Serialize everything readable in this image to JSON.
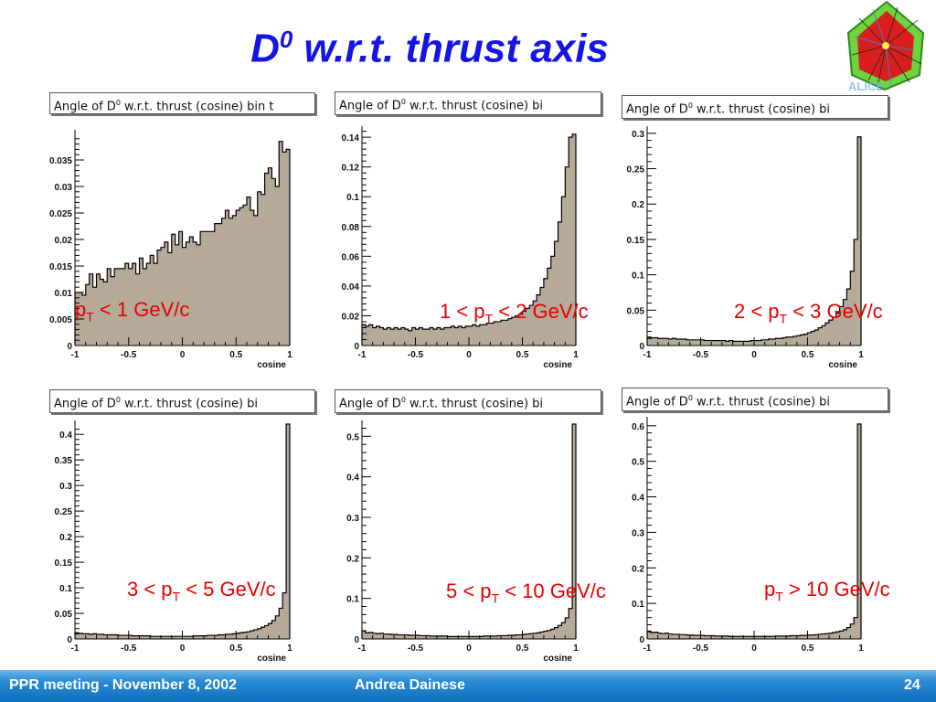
{
  "slide": {
    "title_main": "D",
    "title_sup": "0",
    "title_rest": " w.r.t. thrust axis"
  },
  "footer": {
    "meeting": "PPR meeting - November 8, 2002",
    "author": "Andrea Dainese",
    "page": "24"
  },
  "colors": {
    "title": "#1414e6",
    "annotation": "#e60000",
    "hist_fill": "#b5aa98",
    "hist_line": "#000000",
    "footer": "#1a7ccc"
  },
  "logo": {
    "icon": "alice-event-display-logo-icon"
  },
  "chart_data": [
    {
      "type": "bar",
      "title": "Angle of D0 w.r.t. thrust (cosine)   bin t",
      "title_parts": [
        "Angle of D",
        "0",
        " w.r.t. thrust (cosine)   bin t"
      ],
      "xlabel": "cosine",
      "annotation": {
        "pre": "p",
        "sub": "T",
        "post": " < 1 GeV/c"
      },
      "xlim": [
        -1,
        1
      ],
      "ylim": [
        0,
        0.04
      ],
      "xticks": [
        -1,
        -0.5,
        0,
        0.5,
        1
      ],
      "xtick_labels": [
        "-1",
        "-0.5",
        "0",
        "0.5",
        "1"
      ],
      "yticks": [
        0,
        0.005,
        0.01,
        0.015,
        0.02,
        0.025,
        0.03,
        0.035
      ],
      "ytick_labels": [
        "0",
        "0.005",
        "0.01",
        "0.015",
        "0.02",
        "0.025",
        "0.03",
        "0.035"
      ],
      "values": [
        0.01,
        0.01,
        0.0095,
        0.0115,
        0.0135,
        0.011,
        0.0135,
        0.0125,
        0.012,
        0.0145,
        0.013,
        0.0145,
        0.0145,
        0.0145,
        0.0155,
        0.0145,
        0.0155,
        0.0135,
        0.0165,
        0.0145,
        0.0155,
        0.017,
        0.0155,
        0.018,
        0.0185,
        0.0195,
        0.0175,
        0.021,
        0.019,
        0.0215,
        0.0185,
        0.0195,
        0.0205,
        0.0195,
        0.019,
        0.0215,
        0.0215,
        0.0215,
        0.0215,
        0.023,
        0.023,
        0.024,
        0.0255,
        0.024,
        0.0245,
        0.0255,
        0.026,
        0.0265,
        0.028,
        0.0255,
        0.0245,
        0.029,
        0.0285,
        0.0325,
        0.0335,
        0.0315,
        0.03,
        0.0385,
        0.0365,
        0.037
      ]
    },
    {
      "type": "bar",
      "title": "Angle of D0 w.r.t. thrust (cosine)   bi",
      "title_parts": [
        "Angle of D",
        "0",
        " w.r.t. thrust (cosine)   bi"
      ],
      "xlabel": "cosine",
      "annotation": {
        "pre": "1 < p",
        "sub": "T",
        "post": " < 2 GeV/c"
      },
      "xlim": [
        -1,
        1
      ],
      "ylim": [
        0,
        0.145
      ],
      "xticks": [
        -1,
        -0.5,
        0,
        0.5,
        1
      ],
      "xtick_labels": [
        "-1",
        "-0.5",
        "0",
        "0.5",
        "1"
      ],
      "yticks": [
        0,
        0.02,
        0.04,
        0.06,
        0.08,
        0.1,
        0.12,
        0.14
      ],
      "ytick_labels": [
        "0",
        "0.02",
        "0.04",
        "0.06",
        "0.08",
        "0.1",
        "0.12",
        "0.14"
      ],
      "values": [
        0.014,
        0.013,
        0.014,
        0.012,
        0.013,
        0.012,
        0.011,
        0.012,
        0.011,
        0.012,
        0.011,
        0.012,
        0.011,
        0.01,
        0.012,
        0.011,
        0.012,
        0.011,
        0.011,
        0.012,
        0.011,
        0.012,
        0.011,
        0.012,
        0.012,
        0.013,
        0.012,
        0.013,
        0.012,
        0.013,
        0.013,
        0.014,
        0.013,
        0.014,
        0.014,
        0.015,
        0.015,
        0.016,
        0.016,
        0.017,
        0.017,
        0.018,
        0.019,
        0.02,
        0.021,
        0.023,
        0.025,
        0.027,
        0.03,
        0.034,
        0.039,
        0.045,
        0.052,
        0.06,
        0.07,
        0.083,
        0.1,
        0.12,
        0.14,
        0.142
      ]
    },
    {
      "type": "bar",
      "title": "Angle of D0 w.r.t. thrust (cosine)   bi",
      "title_parts": [
        "Angle of D",
        "0",
        " w.r.t. thrust (cosine)   bi"
      ],
      "xlabel": "cosine",
      "annotation": {
        "pre": "2 < p",
        "sub": "T",
        "post": " < 3 GeV/c"
      },
      "xlim": [
        -1,
        1
      ],
      "ylim": [
        0,
        0.305
      ],
      "xticks": [
        -1,
        -0.5,
        0,
        0.5,
        1
      ],
      "xtick_labels": [
        "-1",
        "-0.5",
        "0",
        "0.5",
        "1"
      ],
      "yticks": [
        0,
        0.05,
        0.1,
        0.15,
        0.2,
        0.25,
        0.3
      ],
      "ytick_labels": [
        "0",
        "0.05",
        "0.1",
        "0.15",
        "0.2",
        "0.25",
        "0.3"
      ],
      "values": [
        0.012,
        0.011,
        0.011,
        0.01,
        0.01,
        0.01,
        0.009,
        0.01,
        0.009,
        0.009,
        0.009,
        0.008,
        0.008,
        0.008,
        0.008,
        0.008,
        0.007,
        0.007,
        0.007,
        0.007,
        0.007,
        0.007,
        0.006,
        0.007,
        0.006,
        0.006,
        0.006,
        0.006,
        0.006,
        0.007,
        0.007,
        0.007,
        0.008,
        0.008,
        0.009,
        0.009,
        0.01,
        0.01,
        0.011,
        0.012,
        0.012,
        0.013,
        0.014,
        0.015,
        0.016,
        0.018,
        0.02,
        0.022,
        0.025,
        0.028,
        0.032,
        0.036,
        0.04,
        0.046,
        0.055,
        0.065,
        0.08,
        0.105,
        0.15,
        0.295
      ]
    },
    {
      "type": "bar",
      "title": "Angle of D0 w.r.t. thrust (cosine)   bi",
      "title_parts": [
        "Angle of D",
        "0",
        " w.r.t. thrust (cosine)   bi"
      ],
      "xlabel": "cosine",
      "annotation": {
        "pre": "3 < p",
        "sub": "T",
        "post": " < 5 GeV/c"
      },
      "xlim": [
        -1,
        1
      ],
      "ylim": [
        0,
        0.42
      ],
      "xticks": [
        -1,
        -0.5,
        0,
        0.5,
        1
      ],
      "xtick_labels": [
        "-1",
        "-0.5",
        "0",
        "0.5",
        "1"
      ],
      "yticks": [
        0,
        0.05,
        0.1,
        0.15,
        0.2,
        0.25,
        0.3,
        0.35,
        0.4
      ],
      "ytick_labels": [
        "0",
        "0.05",
        "0.1",
        "0.15",
        "0.2",
        "0.25",
        "0.3",
        "0.35",
        "0.4"
      ],
      "values": [
        0.012,
        0.011,
        0.01,
        0.01,
        0.009,
        0.01,
        0.009,
        0.009,
        0.008,
        0.008,
        0.008,
        0.008,
        0.007,
        0.007,
        0.007,
        0.007,
        0.006,
        0.006,
        0.006,
        0.006,
        0.006,
        0.005,
        0.005,
        0.005,
        0.005,
        0.005,
        0.005,
        0.005,
        0.005,
        0.005,
        0.005,
        0.005,
        0.005,
        0.006,
        0.006,
        0.006,
        0.006,
        0.007,
        0.007,
        0.007,
        0.008,
        0.008,
        0.009,
        0.009,
        0.01,
        0.011,
        0.012,
        0.013,
        0.014,
        0.016,
        0.018,
        0.02,
        0.023,
        0.026,
        0.03,
        0.036,
        0.045,
        0.06,
        0.09,
        0.42
      ]
    },
    {
      "type": "bar",
      "title": "Angle of D0 w.r.t. thrust (cosine)   bi",
      "title_parts": [
        "Angle of D",
        "0",
        " w.r.t. thrust (cosine)   bi"
      ],
      "xlabel": "cosine",
      "annotation": {
        "pre": "5 < p",
        "sub": "T",
        "post": " < 10 GeV/c"
      },
      "xlim": [
        -1,
        1
      ],
      "ylim": [
        0,
        0.53
      ],
      "xticks": [
        -1,
        -0.5,
        0,
        0.5,
        1
      ],
      "xtick_labels": [
        "-1",
        "-0.5",
        "0",
        "0.5",
        "1"
      ],
      "yticks": [
        0,
        0.1,
        0.2,
        0.3,
        0.4,
        0.5
      ],
      "ytick_labels": [
        "0",
        "0.1",
        "0.2",
        "0.3",
        "0.4",
        "0.5"
      ],
      "values": [
        0.02,
        0.015,
        0.016,
        0.014,
        0.013,
        0.014,
        0.012,
        0.012,
        0.011,
        0.011,
        0.01,
        0.01,
        0.01,
        0.009,
        0.009,
        0.009,
        0.008,
        0.008,
        0.008,
        0.007,
        0.007,
        0.007,
        0.007,
        0.007,
        0.006,
        0.006,
        0.006,
        0.006,
        0.006,
        0.006,
        0.006,
        0.006,
        0.006,
        0.006,
        0.007,
        0.007,
        0.007,
        0.007,
        0.008,
        0.008,
        0.008,
        0.009,
        0.009,
        0.01,
        0.01,
        0.011,
        0.012,
        0.013,
        0.014,
        0.015,
        0.017,
        0.019,
        0.021,
        0.024,
        0.028,
        0.033,
        0.04,
        0.052,
        0.075,
        0.53
      ]
    },
    {
      "type": "bar",
      "title": "Angle of D0 w.r.t. thrust (cosine)   bi",
      "title_parts": [
        "Angle of D",
        "0",
        " w.r.t. thrust (cosine)   bi"
      ],
      "xlabel": "",
      "annotation": {
        "pre": "p",
        "sub": "T",
        "post": " > 10 GeV/c"
      },
      "xlim": [
        -1,
        1
      ],
      "ylim": [
        0,
        0.615
      ],
      "xticks": [
        -1,
        -0.5,
        0,
        0.5,
        1
      ],
      "xtick_labels": [
        "-1",
        "-0.5",
        "0",
        "0.5",
        "1"
      ],
      "yticks": [
        0,
        0.1,
        0.2,
        0.3,
        0.4,
        0.5,
        0.6
      ],
      "ytick_labels": [
        "0",
        "0.1",
        "0.2",
        "0.3",
        "0.4",
        "0.5",
        "0.6"
      ],
      "values": [
        0.022,
        0.018,
        0.019,
        0.016,
        0.015,
        0.016,
        0.014,
        0.013,
        0.013,
        0.012,
        0.012,
        0.011,
        0.011,
        0.01,
        0.01,
        0.01,
        0.009,
        0.009,
        0.009,
        0.008,
        0.008,
        0.008,
        0.008,
        0.007,
        0.007,
        0.007,
        0.007,
        0.007,
        0.007,
        0.007,
        0.007,
        0.007,
        0.007,
        0.007,
        0.007,
        0.007,
        0.008,
        0.008,
        0.008,
        0.008,
        0.009,
        0.009,
        0.009,
        0.01,
        0.01,
        0.011,
        0.011,
        0.012,
        0.013,
        0.014,
        0.015,
        0.016,
        0.018,
        0.02,
        0.022,
        0.026,
        0.032,
        0.042,
        0.06,
        0.605
      ]
    }
  ]
}
